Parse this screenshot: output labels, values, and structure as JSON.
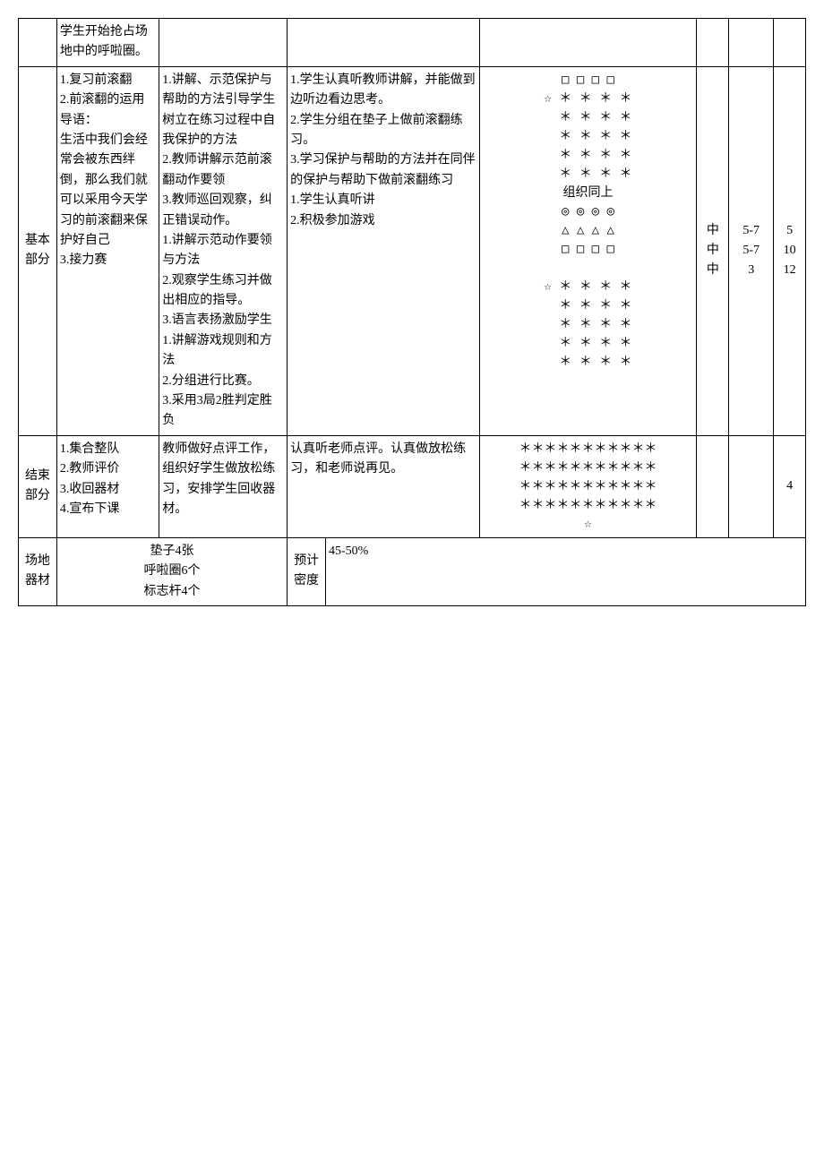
{
  "rows": {
    "r0": {
      "content": "学生开始抢占场地中的呼啦圈。"
    },
    "r1": {
      "section": "基本部分",
      "content": "1.复习前滚翻\n2.前滚翻的运用\n导语：\n生活中我们会经常会被东西绊倒，那么我们就可以采用今天学习的前滚翻来保护好自己\n3.接力赛",
      "teacher": "1.讲解、示范保护与帮助的方法引导学生树立在练习过程中自我保护的方法\n2.教师讲解示范前滚翻动作要领\n3.教师巡回观察，纠正错误动作。\n1.讲解示范动作要领与方法\n2.观察学生练习并做出相应的指导。\n3.语言表扬激励学生\n1.讲解游戏规则和方法\n2.分组进行比赛。\n3.采用3局2胜判定胜负",
      "student": "1.学生认真听教师讲解，并能做到边听边看边思考。\n2.学生分组在垫子上做前滚翻练习。\n3.学习保护与帮助的方法并在同伴的保护与帮助下做前滚翻练习\n1.学生认真听讲\n2.积极参加游戏",
      "diagram_lines": [
        "□ □ □ □",
        "☆ ＊ ＊ ＊ ＊",
        "  ＊ ＊ ＊ ＊",
        "  ＊ ＊ ＊ ＊",
        "  ＊ ＊ ＊ ＊",
        "  ＊ ＊ ＊ ＊",
        "组织同上",
        "◎ ◎ ◎ ◎",
        "△ △ △ △",
        "□ □ □ □",
        "",
        "☆ ＊ ＊ ＊ ＊",
        "  ＊ ＊ ＊ ＊",
        "  ＊ ＊ ＊ ＊",
        "  ＊ ＊ ＊ ＊",
        "  ＊ ＊ ＊ ＊"
      ],
      "intensity": "中\n中\n中",
      "count": "5-7\n5-7\n3",
      "time": "5\n10\n12"
    },
    "r2": {
      "section": "结束部分",
      "content": "1.集合整队\n2.教师评价\n3.收回器材\n4.宣布下课",
      "teacher": "教师做好点评工作，组织好学生做放松练习，安排学生回收器材。",
      "student": "认真听老师点评。认真做放松练习，和老师说再见。",
      "diagram_lines": [
        "＊＊＊＊＊＊＊＊＊＊＊",
        "＊＊＊＊＊＊＊＊＊＊＊",
        "＊＊＊＊＊＊＊＊＊＊＊",
        "＊＊＊＊＊＊＊＊＊＊＊",
        "☆"
      ],
      "intensity": "",
      "count": "",
      "time": "4"
    },
    "r3": {
      "section": "场地器材",
      "equipment": "垫子4张\n呼啦圈6个\n标志杆4个",
      "density_label": "预计密度",
      "density": "45-50%"
    }
  }
}
